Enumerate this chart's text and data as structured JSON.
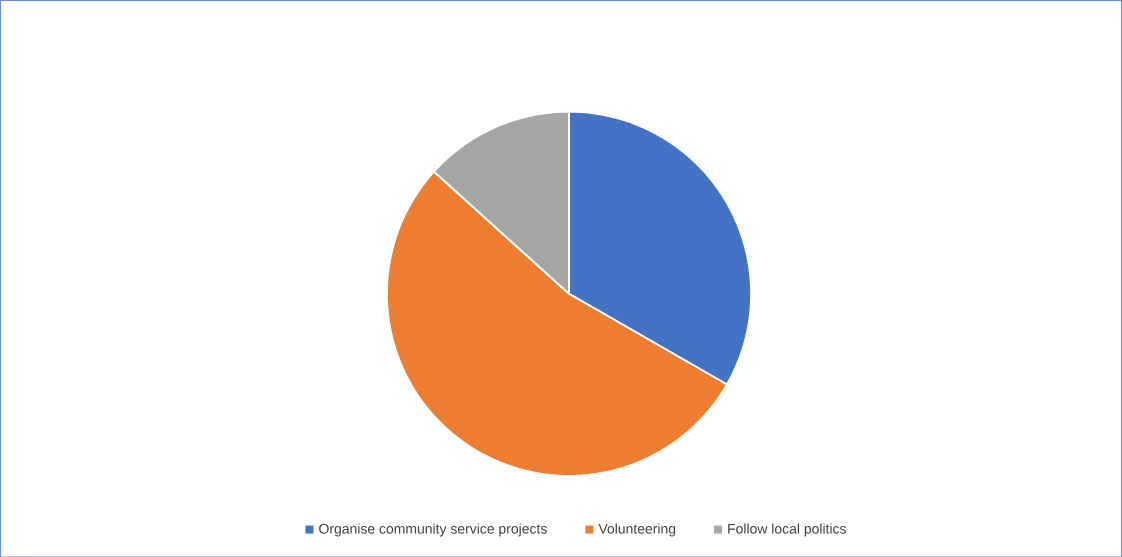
{
  "chart_data": {
    "type": "pie",
    "categories": [
      "Organise community service projects",
      "Volunteering",
      "Follow local politics"
    ],
    "values": [
      33.3,
      53.4,
      13.3
    ],
    "colors": [
      "#4472c4",
      "#ed7d31",
      "#a5a5a5"
    ],
    "legend": "bottom"
  }
}
